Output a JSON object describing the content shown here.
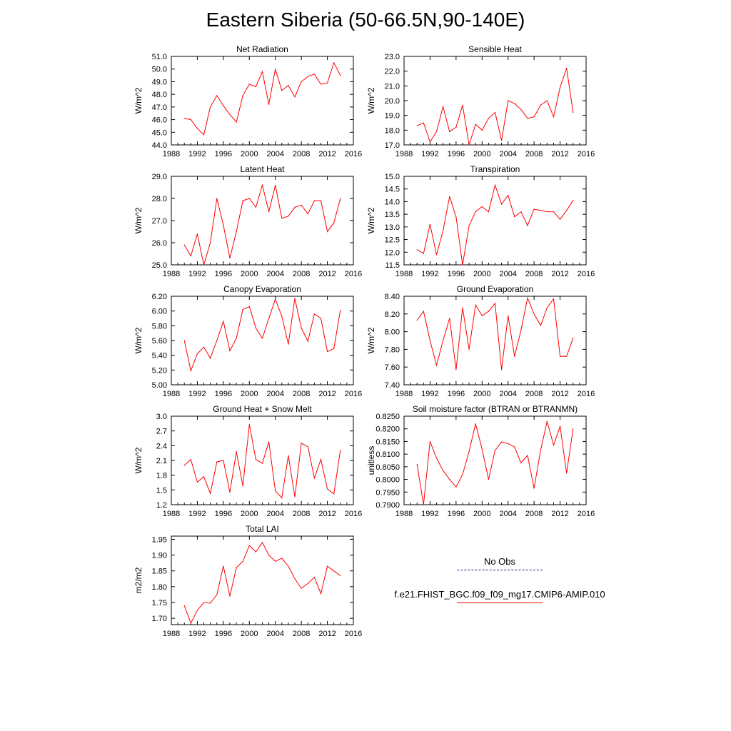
{
  "title": "Eastern Siberia (50-66.5N,90-140E)",
  "colors": {
    "model_line": "#ff0000",
    "obs_line": "#1a1a8c",
    "axis": "#000000"
  },
  "legend": {
    "obs_label": "No Obs",
    "model_label": "f.e21.FHIST_BGC.f09_f09_mg17.CMIP6-AMIP.010"
  },
  "chart_data": [
    {
      "type": "line",
      "title": "Net Radiation",
      "xlabel": "",
      "ylabel": "W/m^2",
      "xlim": [
        1988,
        2016
      ],
      "xticks": [
        "1988",
        "1992",
        "1996",
        "2000",
        "2004",
        "2008",
        "2012",
        "2016"
      ],
      "ylim": [
        44.0,
        51.0
      ],
      "yticks": [
        "44.0",
        "45.0",
        "46.0",
        "47.0",
        "48.0",
        "49.0",
        "50.0",
        "51.0"
      ],
      "x": [
        1990,
        1991,
        1992,
        1993,
        1994,
        1995,
        1996,
        1997,
        1998,
        1999,
        2000,
        2001,
        2002,
        2003,
        2004,
        2005,
        2006,
        2007,
        2008,
        2009,
        2010,
        2011,
        2012,
        2013,
        2014
      ],
      "values": [
        46.1,
        46.0,
        45.3,
        44.8,
        47.0,
        47.9,
        47.1,
        46.4,
        45.8,
        47.9,
        48.8,
        48.6,
        49.8,
        47.2,
        50.0,
        48.3,
        48.7,
        47.8,
        49.0,
        49.4,
        49.6,
        48.8,
        48.9,
        50.5,
        49.5
      ]
    },
    {
      "type": "line",
      "title": "Sensible Heat",
      "xlabel": "",
      "ylabel": "W/m^2",
      "xlim": [
        1988,
        2016
      ],
      "xticks": [
        "1988",
        "1992",
        "1996",
        "2000",
        "2004",
        "2008",
        "2012",
        "2016"
      ],
      "ylim": [
        17.0,
        23.0
      ],
      "yticks": [
        "17.0",
        "18.0",
        "19.0",
        "20.0",
        "21.0",
        "22.0",
        "23.0"
      ],
      "x": [
        1990,
        1991,
        1992,
        1993,
        1994,
        1995,
        1996,
        1997,
        1998,
        1999,
        2000,
        2001,
        2002,
        2003,
        2004,
        2005,
        2006,
        2007,
        2008,
        2009,
        2010,
        2011,
        2012,
        2013,
        2014
      ],
      "values": [
        18.3,
        18.5,
        17.2,
        17.9,
        19.6,
        17.9,
        18.2,
        19.7,
        17.0,
        18.4,
        18.0,
        18.8,
        19.2,
        17.3,
        20.0,
        19.8,
        19.4,
        18.8,
        18.9,
        19.7,
        20.0,
        18.9,
        20.9,
        22.2,
        19.2
      ]
    },
    {
      "type": "line",
      "title": "Latent Heat",
      "xlabel": "",
      "ylabel": "W/m^2",
      "xlim": [
        1988,
        2016
      ],
      "xticks": [
        "1988",
        "1992",
        "1996",
        "2000",
        "2004",
        "2008",
        "2012",
        "2016"
      ],
      "ylim": [
        25.0,
        29.0
      ],
      "yticks": [
        "25.0",
        "26.0",
        "27.0",
        "28.0",
        "29.0"
      ],
      "x": [
        1990,
        1991,
        1992,
        1993,
        1994,
        1995,
        1996,
        1997,
        1998,
        1999,
        2000,
        2001,
        2002,
        2003,
        2004,
        2005,
        2006,
        2007,
        2008,
        2009,
        2010,
        2011,
        2012,
        2013,
        2014
      ],
      "values": [
        25.9,
        25.4,
        26.4,
        25.0,
        26.0,
        28.0,
        26.8,
        25.3,
        26.5,
        27.9,
        28.0,
        27.6,
        28.6,
        27.4,
        28.6,
        27.1,
        27.2,
        27.6,
        27.7,
        27.3,
        27.9,
        27.9,
        26.5,
        26.9,
        28.0
      ]
    },
    {
      "type": "line",
      "title": "Transpiration",
      "xlabel": "",
      "ylabel": "W/m^2",
      "xlim": [
        1988,
        2016
      ],
      "xticks": [
        "1988",
        "1992",
        "1996",
        "2000",
        "2004",
        "2008",
        "2012",
        "2016"
      ],
      "ylim": [
        11.5,
        15.0
      ],
      "yticks": [
        "11.5",
        "12.0",
        "12.5",
        "13.0",
        "13.5",
        "14.0",
        "14.5",
        "15.0"
      ],
      "x": [
        1990,
        1991,
        1992,
        1993,
        1994,
        1995,
        1996,
        1997,
        1998,
        1999,
        2000,
        2001,
        2002,
        2003,
        2004,
        2005,
        2006,
        2007,
        2008,
        2009,
        2010,
        2011,
        2012,
        2013,
        2014
      ],
      "values": [
        12.1,
        11.95,
        13.1,
        11.9,
        12.85,
        14.2,
        13.4,
        11.5,
        13.05,
        13.6,
        13.8,
        13.6,
        14.65,
        13.9,
        14.25,
        13.4,
        13.6,
        13.05,
        13.7,
        13.65,
        13.6,
        13.6,
        13.3,
        13.65,
        14.05
      ]
    },
    {
      "type": "line",
      "title": "Canopy Evaporation",
      "xlabel": "",
      "ylabel": "W/m^2",
      "xlim": [
        1988,
        2016
      ],
      "xticks": [
        "1988",
        "1992",
        "1996",
        "2000",
        "2004",
        "2008",
        "2012",
        "2016"
      ],
      "ylim": [
        5.0,
        6.2
      ],
      "yticks": [
        "5.00",
        "5.20",
        "5.40",
        "5.60",
        "5.80",
        "6.00",
        "6.20"
      ],
      "x": [
        1990,
        1991,
        1992,
        1993,
        1994,
        1995,
        1996,
        1997,
        1998,
        1999,
        2000,
        2001,
        2002,
        2003,
        2004,
        2005,
        2006,
        2007,
        2008,
        2009,
        2010,
        2011,
        2012,
        2013,
        2014
      ],
      "values": [
        5.6,
        5.19,
        5.42,
        5.51,
        5.36,
        5.6,
        5.86,
        5.46,
        5.63,
        6.02,
        6.06,
        5.77,
        5.63,
        5.9,
        6.16,
        5.93,
        5.55,
        6.17,
        5.77,
        5.59,
        5.96,
        5.9,
        5.45,
        5.49,
        6.01
      ]
    },
    {
      "type": "line",
      "title": "Ground Evaporation",
      "xlabel": "",
      "ylabel": "W/m^2",
      "xlim": [
        1988,
        2016
      ],
      "xticks": [
        "1988",
        "1992",
        "1996",
        "2000",
        "2004",
        "2008",
        "2012",
        "2016"
      ],
      "ylim": [
        7.4,
        8.4
      ],
      "yticks": [
        "7.40",
        "7.60",
        "7.80",
        "8.00",
        "8.20",
        "8.40"
      ],
      "x": [
        1990,
        1991,
        1992,
        1993,
        1994,
        1995,
        1996,
        1997,
        1998,
        1999,
        2000,
        2001,
        2002,
        2003,
        2004,
        2005,
        2006,
        2007,
        2008,
        2009,
        2010,
        2011,
        2012,
        2013,
        2014
      ],
      "values": [
        8.13,
        8.23,
        7.9,
        7.62,
        7.9,
        8.15,
        7.57,
        8.27,
        7.8,
        8.3,
        8.18,
        8.23,
        8.32,
        7.57,
        8.18,
        7.72,
        8.02,
        8.38,
        8.2,
        8.07,
        8.27,
        8.37,
        7.72,
        7.72,
        7.93
      ]
    },
    {
      "type": "line",
      "title": "Ground Heat + Snow Melt",
      "xlabel": "",
      "ylabel": "W/m^2",
      "xlim": [
        1988,
        2016
      ],
      "xticks": [
        "1988",
        "1992",
        "1996",
        "2000",
        "2004",
        "2008",
        "2012",
        "2016"
      ],
      "ylim": [
        1.2,
        3.0
      ],
      "yticks": [
        "1.2",
        "1.5",
        "1.8",
        "2.1",
        "2.4",
        "2.7",
        "3.0"
      ],
      "x": [
        1990,
        1991,
        1992,
        1993,
        1994,
        1995,
        1996,
        1997,
        1998,
        1999,
        2000,
        2001,
        2002,
        2003,
        2004,
        2005,
        2006,
        2007,
        2008,
        2009,
        2010,
        2011,
        2012,
        2013,
        2014
      ],
      "values": [
        2.0,
        2.12,
        1.66,
        1.77,
        1.43,
        2.07,
        2.1,
        1.45,
        2.28,
        1.58,
        2.83,
        2.12,
        2.04,
        2.48,
        1.48,
        1.34,
        2.2,
        1.36,
        2.45,
        2.38,
        1.74,
        2.12,
        1.52,
        1.42,
        2.31
      ]
    },
    {
      "type": "line",
      "title": "Soil moisture factor (BTRAN or BTRANMN)",
      "xlabel": "",
      "ylabel": "unitless",
      "xlim": [
        1988,
        2016
      ],
      "xticks": [
        "1988",
        "1992",
        "1996",
        "2000",
        "2004",
        "2008",
        "2012",
        "2016"
      ],
      "ylim": [
        0.79,
        0.825
      ],
      "yticks": [
        "0.7900",
        "0.7950",
        "0.8000",
        "0.8050",
        "0.8100",
        "0.8150",
        "0.8200",
        "0.8250"
      ],
      "x": [
        1990,
        1991,
        1992,
        1993,
        1994,
        1995,
        1996,
        1997,
        1998,
        1999,
        2000,
        2001,
        2002,
        2003,
        2004,
        2005,
        2006,
        2007,
        2008,
        2009,
        2010,
        2011,
        2012,
        2013,
        2014
      ],
      "values": [
        0.806,
        0.79,
        0.815,
        0.8085,
        0.8035,
        0.8,
        0.797,
        0.802,
        0.811,
        0.822,
        0.812,
        0.8,
        0.8115,
        0.8148,
        0.8142,
        0.8128,
        0.8065,
        0.8095,
        0.7965,
        0.8115,
        0.823,
        0.8135,
        0.821,
        0.8025,
        0.82
      ]
    },
    {
      "type": "line",
      "title": "Total LAI",
      "xlabel": "",
      "ylabel": "m2/m2",
      "xlim": [
        1988,
        2016
      ],
      "xticks": [
        "1988",
        "1992",
        "1996",
        "2000",
        "2004",
        "2008",
        "2012",
        "2016"
      ],
      "ylim": [
        1.68,
        1.96
      ],
      "yticks": [
        "1.70",
        "1.75",
        "1.80",
        "1.85",
        "1.90",
        "1.95"
      ],
      "x": [
        1990,
        1991,
        1992,
        1993,
        1994,
        1995,
        1996,
        1997,
        1998,
        1999,
        2000,
        2001,
        2002,
        2003,
        2004,
        2005,
        2006,
        2007,
        2008,
        2009,
        2010,
        2011,
        2012,
        2013,
        2014
      ],
      "values": [
        1.74,
        1.685,
        1.725,
        1.75,
        1.748,
        1.775,
        1.865,
        1.77,
        1.86,
        1.88,
        1.93,
        1.91,
        1.94,
        1.9,
        1.88,
        1.89,
        1.865,
        1.825,
        1.795,
        1.81,
        1.83,
        1.778,
        1.865,
        1.85,
        1.835
      ]
    }
  ]
}
